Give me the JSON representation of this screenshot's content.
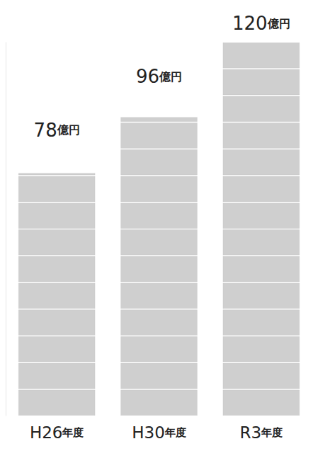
{
  "chart_data": {
    "type": "bar",
    "categories": [
      "H26年度",
      "H30年度",
      "R3年度"
    ],
    "values": [
      78,
      96,
      120
    ],
    "value_labels": [
      "78億円",
      "96億円",
      "120億円"
    ],
    "color": "#cfcfcf",
    "ylim": [
      0,
      120
    ],
    "data_labels": true,
    "tick_labels": "x",
    "grid": false
  }
}
